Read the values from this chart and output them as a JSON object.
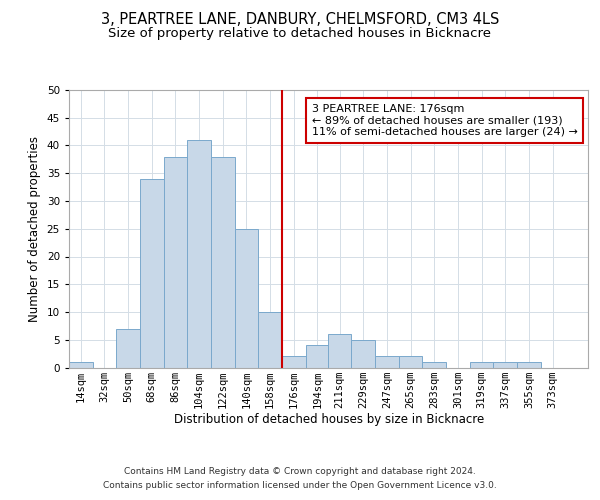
{
  "title": "3, PEARTREE LANE, DANBURY, CHELMSFORD, CM3 4LS",
  "subtitle": "Size of property relative to detached houses in Bicknacre",
  "xlabel": "Distribution of detached houses by size in Bicknacre",
  "ylabel": "Number of detached properties",
  "bin_labels": [
    "14sqm",
    "32sqm",
    "50sqm",
    "68sqm",
    "86sqm",
    "104sqm",
    "122sqm",
    "140sqm",
    "158sqm",
    "176sqm",
    "194sqm",
    "211sqm",
    "229sqm",
    "247sqm",
    "265sqm",
    "283sqm",
    "301sqm",
    "319sqm",
    "337sqm",
    "355sqm",
    "373sqm"
  ],
  "bin_edges": [
    14,
    32,
    50,
    68,
    86,
    104,
    122,
    140,
    158,
    176,
    194,
    211,
    229,
    247,
    265,
    283,
    301,
    319,
    337,
    355,
    373,
    391
  ],
  "bar_heights": [
    1,
    0,
    7,
    34,
    38,
    41,
    38,
    25,
    10,
    2,
    4,
    6,
    5,
    2,
    2,
    1,
    0,
    1,
    1,
    1,
    0
  ],
  "bar_color": "#c8d8e8",
  "bar_edge_color": "#7aa8cc",
  "reference_line_x": 176,
  "reference_line_color": "#cc0000",
  "annotation_text": "3 PEARTREE LANE: 176sqm\n← 89% of detached houses are smaller (193)\n11% of semi-detached houses are larger (24) →",
  "annotation_box_color": "#cc0000",
  "ylim": [
    0,
    50
  ],
  "yticks": [
    0,
    5,
    10,
    15,
    20,
    25,
    30,
    35,
    40,
    45,
    50
  ],
  "grid_color": "#d4dde6",
  "footer_line1": "Contains HM Land Registry data © Crown copyright and database right 2024.",
  "footer_line2": "Contains public sector information licensed under the Open Government Licence v3.0.",
  "title_fontsize": 10.5,
  "subtitle_fontsize": 9.5,
  "axis_label_fontsize": 8.5,
  "tick_fontsize": 7.5,
  "annotation_fontsize": 8,
  "footer_fontsize": 6.5
}
